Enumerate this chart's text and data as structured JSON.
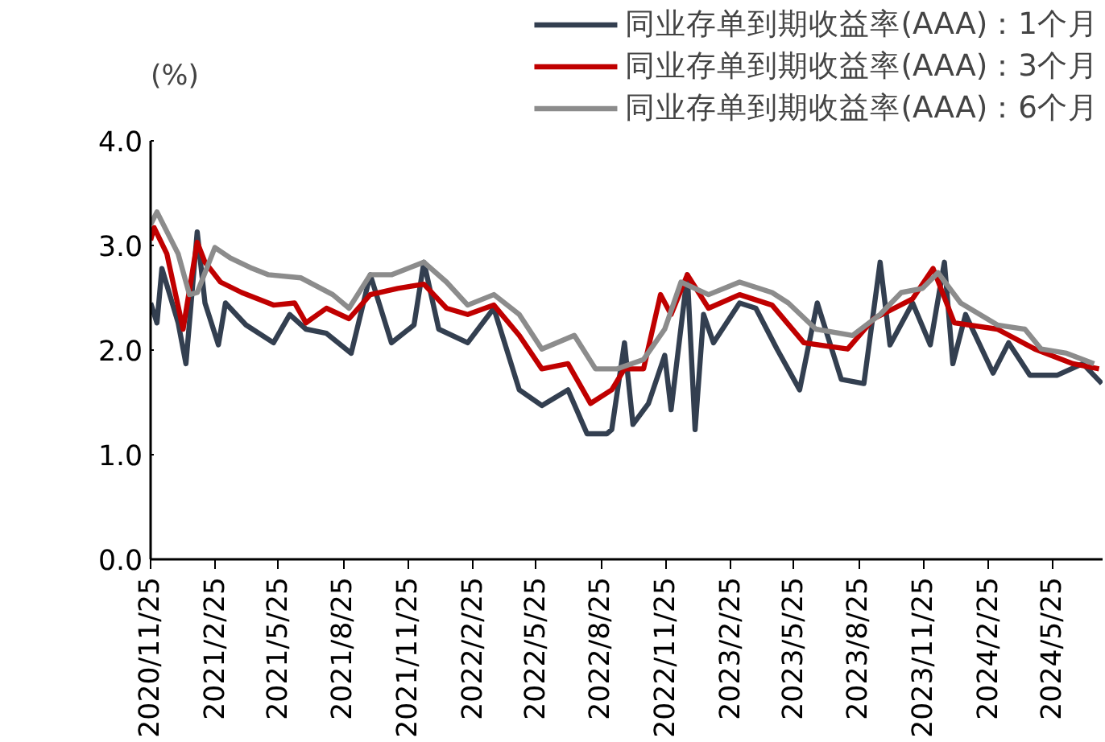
{
  "chart_data": {
    "type": "line",
    "ylabel": "(%)",
    "xlim": [
      "2020-11-25",
      "2024-08-04"
    ],
    "ylim": [
      0,
      4
    ],
    "yticks": [
      {
        "value": 0,
        "label": "0.0"
      },
      {
        "value": 1,
        "label": "1.0"
      },
      {
        "value": 2,
        "label": "2.0"
      },
      {
        "value": 3,
        "label": "3.0"
      },
      {
        "value": 4,
        "label": "4.0"
      }
    ],
    "xticks": [
      {
        "value": "2020-11-25",
        "label": "2020/11/25"
      },
      {
        "value": "2021-02-25",
        "label": "2021/2/25"
      },
      {
        "value": "2021-05-25",
        "label": "2021/5/25"
      },
      {
        "value": "2021-08-25",
        "label": "2021/8/25"
      },
      {
        "value": "2021-11-25",
        "label": "2021/11/25"
      },
      {
        "value": "2022-02-25",
        "label": "2022/2/25"
      },
      {
        "value": "2022-05-25",
        "label": "2022/5/25"
      },
      {
        "value": "2022-08-25",
        "label": "2022/8/25"
      },
      {
        "value": "2022-11-25",
        "label": "2022/11/25"
      },
      {
        "value": "2023-02-25",
        "label": "2023/2/25"
      },
      {
        "value": "2023-05-25",
        "label": "2023/5/25"
      },
      {
        "value": "2023-08-25",
        "label": "2023/8/25"
      },
      {
        "value": "2023-11-25",
        "label": "2023/11/25"
      },
      {
        "value": "2024-02-25",
        "label": "2024/2/25"
      },
      {
        "value": "2024-05-25",
        "label": "2024/5/25"
      }
    ],
    "grid": false,
    "legend": "top right",
    "line_style": "solid",
    "marker": "none",
    "series": [
      {
        "name": "同业存单到期收益率(AAA)：1个月",
        "color": "#333f50",
        "x": [
          "2020-11-25",
          "2020-12-04",
          "2020-12-11",
          "2021-01-03",
          "2021-01-14",
          "2021-01-30",
          "2021-02-10",
          "2021-03-01",
          "2021-03-11",
          "2021-04-09",
          "2021-05-18",
          "2021-06-10",
          "2021-07-03",
          "2021-08-01",
          "2021-09-05",
          "2021-10-02",
          "2021-11-01",
          "2021-12-03",
          "2021-12-17",
          "2022-01-07",
          "2022-02-17",
          "2022-03-26",
          "2022-05-01",
          "2022-06-02",
          "2022-07-09",
          "2022-08-05",
          "2022-09-02",
          "2022-09-09",
          "2022-09-27",
          "2022-10-09",
          "2022-10-31",
          "2022-11-23",
          "2022-12-02",
          "2022-12-25",
          "2023-01-05",
          "2023-01-17",
          "2023-01-31",
          "2023-03-09",
          "2023-04-01",
          "2023-05-01",
          "2023-06-02",
          "2023-06-27",
          "2023-07-31",
          "2023-09-01",
          "2023-09-24",
          "2023-10-08",
          "2023-11-09",
          "2023-12-04",
          "2023-12-24",
          "2024-01-05",
          "2024-01-23",
          "2024-03-02",
          "2024-03-24",
          "2024-04-23",
          "2024-06-01",
          "2024-07-07",
          "2024-08-03"
        ],
        "values": [
          2.45,
          2.26,
          2.78,
          2.26,
          1.87,
          3.13,
          2.45,
          2.05,
          2.45,
          2.24,
          2.07,
          2.34,
          2.2,
          2.16,
          1.97,
          2.72,
          2.07,
          2.24,
          2.84,
          2.2,
          2.07,
          2.4,
          1.62,
          1.47,
          1.62,
          1.2,
          1.2,
          1.24,
          2.07,
          1.29,
          1.49,
          1.95,
          1.43,
          2.72,
          1.24,
          2.34,
          2.07,
          2.45,
          2.4,
          2.01,
          1.62,
          2.45,
          1.72,
          1.68,
          2.84,
          2.05,
          2.45,
          2.05,
          2.84,
          1.87,
          2.34,
          1.78,
          2.07,
          1.76,
          1.76,
          1.87,
          1.68
        ]
      },
      {
        "name": "同业存单到期收益率(AAA)：3个月",
        "color": "#c00000",
        "x": [
          "2020-11-25",
          "2020-11-30",
          "2020-12-18",
          "2021-01-10",
          "2021-01-30",
          "2021-02-10",
          "2021-03-04",
          "2021-04-03",
          "2021-05-18",
          "2021-06-17",
          "2021-07-03",
          "2021-08-01",
          "2021-09-02",
          "2021-10-02",
          "2021-11-10",
          "2021-12-17",
          "2022-01-18",
          "2022-02-17",
          "2022-03-26",
          "2022-05-01",
          "2022-06-02",
          "2022-07-09",
          "2022-08-10",
          "2022-09-09",
          "2022-09-27",
          "2022-10-24",
          "2022-11-17",
          "2022-12-02",
          "2022-12-25",
          "2023-01-24",
          "2023-03-09",
          "2023-04-24",
          "2023-06-08",
          "2023-08-09",
          "2023-09-15",
          "2023-11-09",
          "2023-12-08",
          "2024-01-07",
          "2024-03-08",
          "2024-04-30",
          "2024-06-23",
          "2024-07-30"
        ],
        "values": [
          3.05,
          3.17,
          2.92,
          2.2,
          3.03,
          2.84,
          2.65,
          2.55,
          2.43,
          2.45,
          2.26,
          2.4,
          2.3,
          2.53,
          2.59,
          2.63,
          2.4,
          2.34,
          2.43,
          2.14,
          1.82,
          1.87,
          1.49,
          1.62,
          1.82,
          1.82,
          2.53,
          2.34,
          2.72,
          2.4,
          2.53,
          2.43,
          2.07,
          2.01,
          2.3,
          2.49,
          2.78,
          2.26,
          2.2,
          2.01,
          1.87,
          1.82
        ]
      },
      {
        "name": "同业存单到期收益率(AAA)：6个月",
        "color": "#8c8c8c",
        "x": [
          "2020-11-25",
          "2020-12-04",
          "2021-01-03",
          "2021-01-19",
          "2021-01-30",
          "2021-02-24",
          "2021-03-18",
          "2021-04-18",
          "2021-05-11",
          "2021-06-26",
          "2021-08-10",
          "2021-09-02",
          "2021-10-02",
          "2021-11-01",
          "2021-12-17",
          "2022-01-18",
          "2022-02-17",
          "2022-03-26",
          "2022-05-01",
          "2022-06-02",
          "2022-07-18",
          "2022-08-17",
          "2022-09-09",
          "2022-09-16",
          "2022-10-24",
          "2022-11-23",
          "2022-12-16",
          "2023-01-24",
          "2023-03-09",
          "2023-04-24",
          "2023-05-17",
          "2023-06-25",
          "2023-08-16",
          "2023-09-24",
          "2023-10-24",
          "2023-11-23",
          "2023-12-15",
          "2024-01-16",
          "2024-03-08",
          "2024-04-16",
          "2024-05-09",
          "2024-06-14",
          "2024-07-23"
        ],
        "values": [
          3.2,
          3.32,
          2.92,
          2.53,
          2.55,
          2.98,
          2.88,
          2.78,
          2.72,
          2.69,
          2.53,
          2.4,
          2.72,
          2.72,
          2.84,
          2.65,
          2.43,
          2.53,
          2.34,
          2.01,
          2.14,
          1.82,
          1.82,
          1.82,
          1.91,
          2.2,
          2.65,
          2.53,
          2.65,
          2.55,
          2.45,
          2.2,
          2.14,
          2.34,
          2.55,
          2.59,
          2.74,
          2.45,
          2.24,
          2.2,
          2.01,
          1.97,
          1.87
        ]
      }
    ]
  }
}
